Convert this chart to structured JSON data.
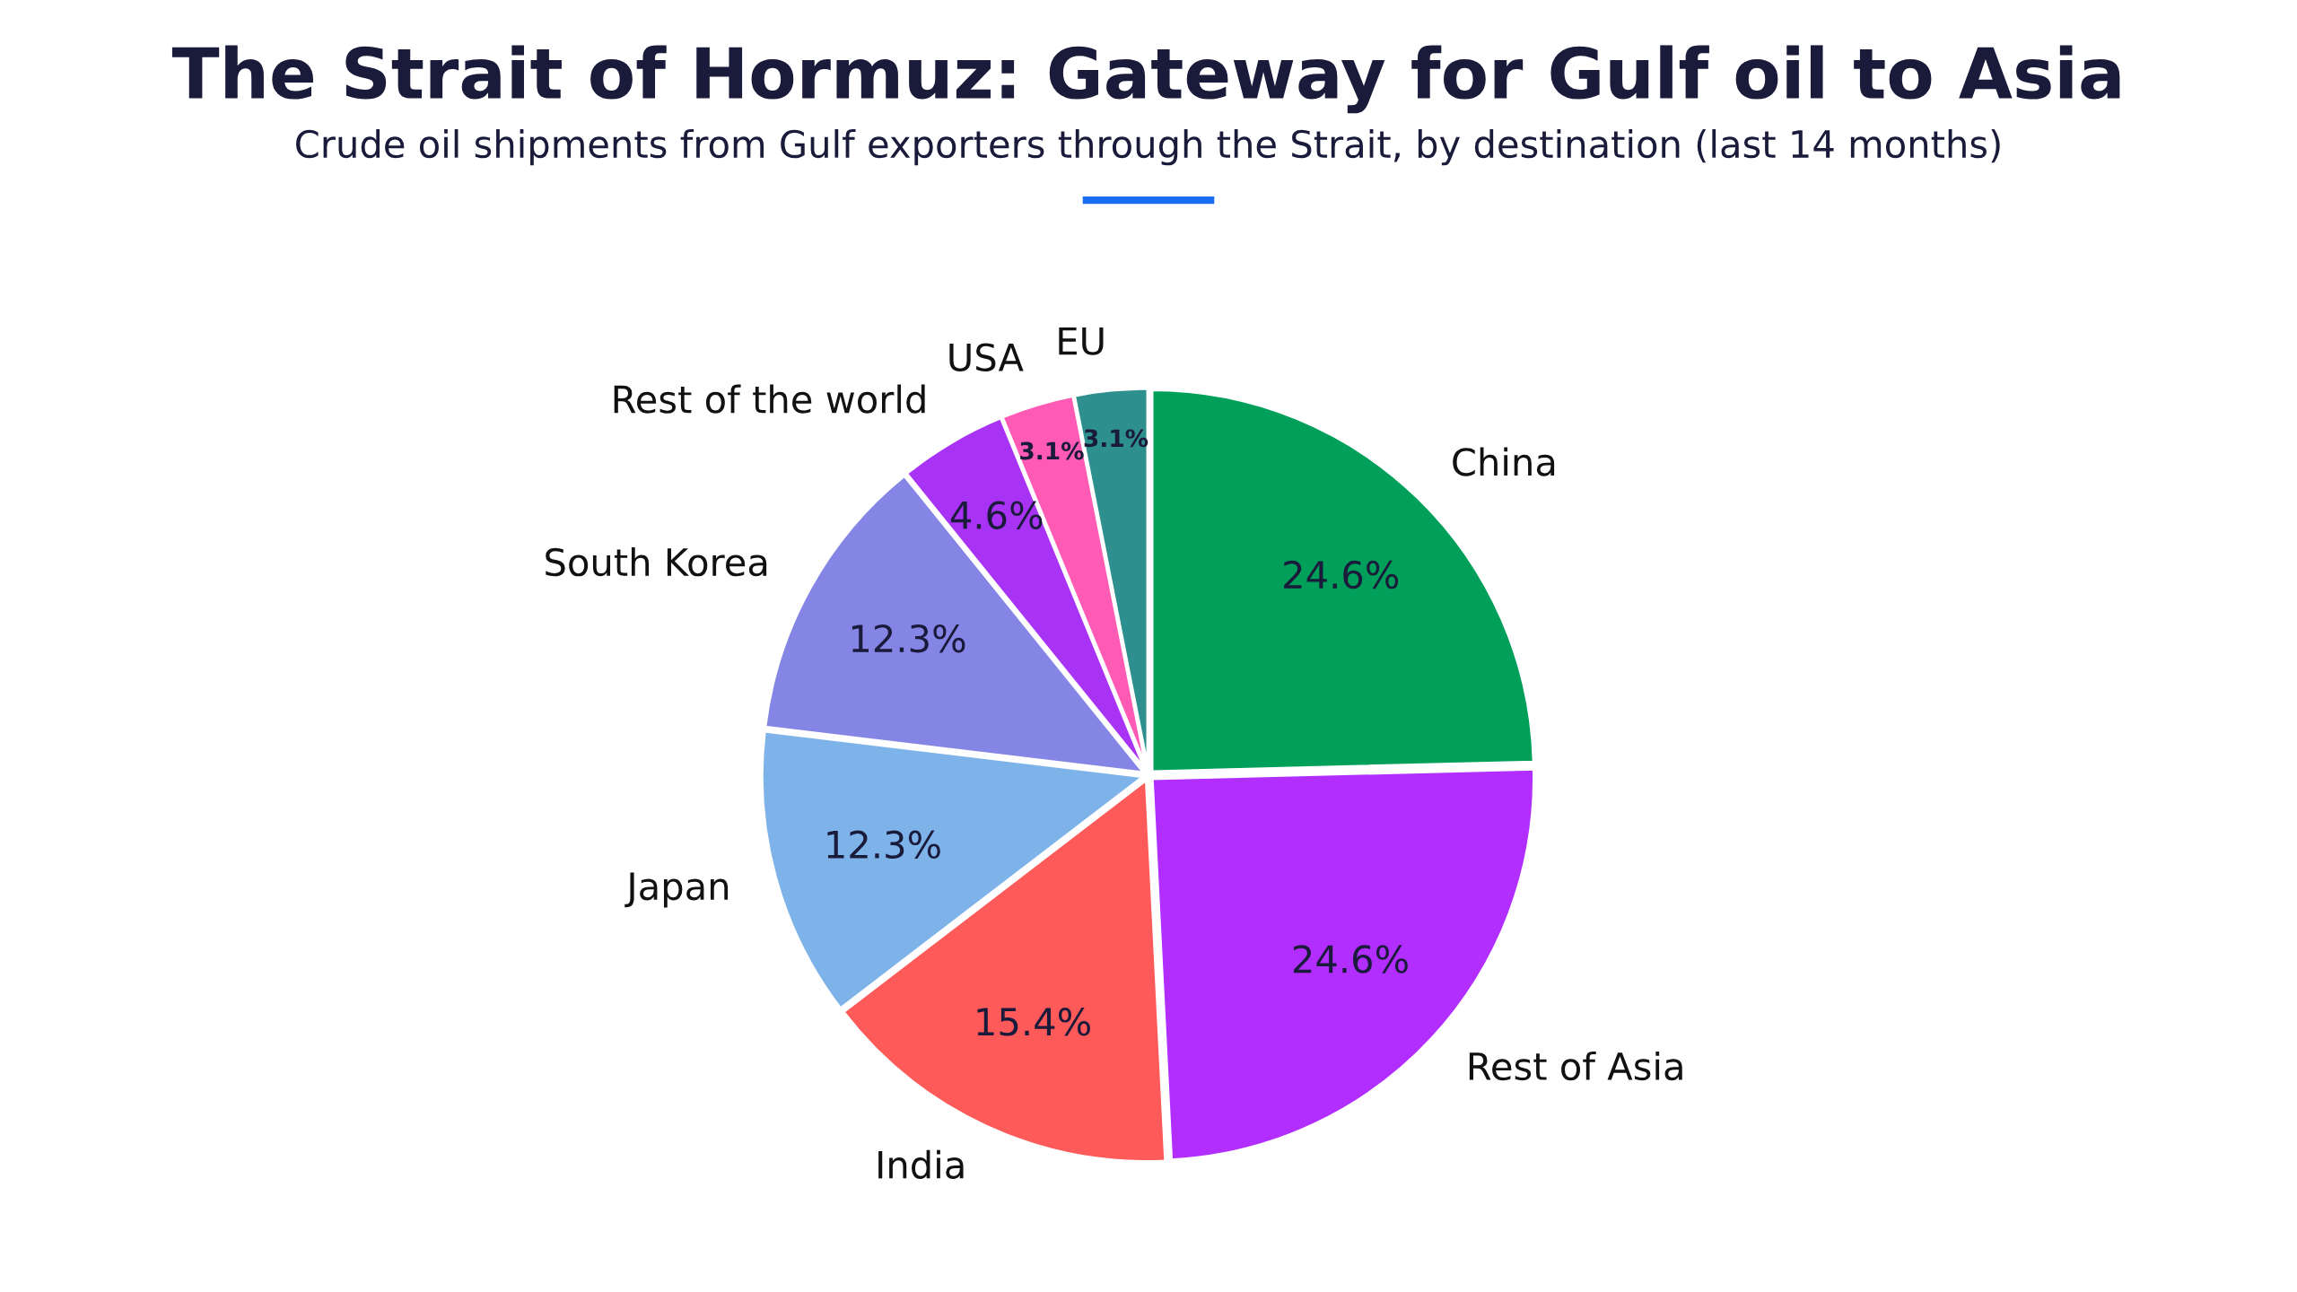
{
  "chart_data": {
    "type": "pie",
    "title": "The Strait of Hormuz: Gateway for Gulf oil to Asia",
    "subtitle": "Crude oil shipments from Gulf exporters through the Strait, by destination (last 14 months)",
    "categories": [
      "China",
      "Rest of Asia",
      "India",
      "Japan",
      "South Korea",
      "Rest of the world",
      "USA",
      "EU"
    ],
    "values": [
      24.6,
      24.6,
      15.4,
      12.3,
      12.3,
      4.6,
      3.1,
      3.1
    ],
    "value_labels": [
      "24.6%",
      "24.6%",
      "15.4%",
      "12.3%",
      "12.3%",
      "4.6%",
      "3.1%",
      "3.1%"
    ],
    "colors": [
      "#00a05a",
      "#b22eff",
      "#ff5a5a",
      "#7eb3ea",
      "#8585e6",
      "#a933f5",
      "#ff5ab4",
      "#2e8f8f"
    ],
    "legend": false
  }
}
